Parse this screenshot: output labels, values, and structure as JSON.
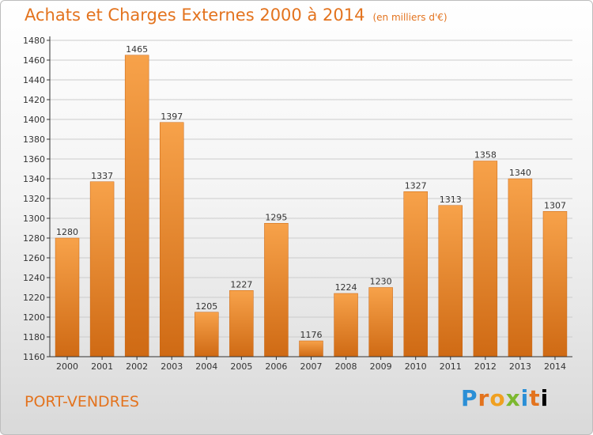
{
  "title": "Achats et Charges Externes 2000 à 2014",
  "subtitle": "(en milliers d'€)",
  "city": "PORT-VENDRES",
  "logo": [
    "P",
    "r",
    "o",
    "x",
    "i",
    "t",
    "i"
  ],
  "colors": {
    "accent": "#e3731e",
    "bar_top": "#f7a24a",
    "bar_bottom": "#cf6a14",
    "grid": "#cccccc",
    "axis": "#333333"
  },
  "chart_data": {
    "type": "bar",
    "categories": [
      "2000",
      "2001",
      "2002",
      "2003",
      "2004",
      "2005",
      "2006",
      "2007",
      "2008",
      "2009",
      "2010",
      "2011",
      "2012",
      "2013",
      "2014"
    ],
    "values": [
      1280,
      1337,
      1465,
      1397,
      1205,
      1227,
      1295,
      1176,
      1224,
      1230,
      1327,
      1313,
      1358,
      1340,
      1307
    ],
    "ylim": [
      1160,
      1480
    ],
    "yticks": [
      1160,
      1180,
      1200,
      1220,
      1240,
      1260,
      1280,
      1300,
      1320,
      1340,
      1360,
      1380,
      1400,
      1420,
      1440,
      1460,
      1480
    ],
    "grid": true,
    "xlabel": "",
    "ylabel": ""
  }
}
